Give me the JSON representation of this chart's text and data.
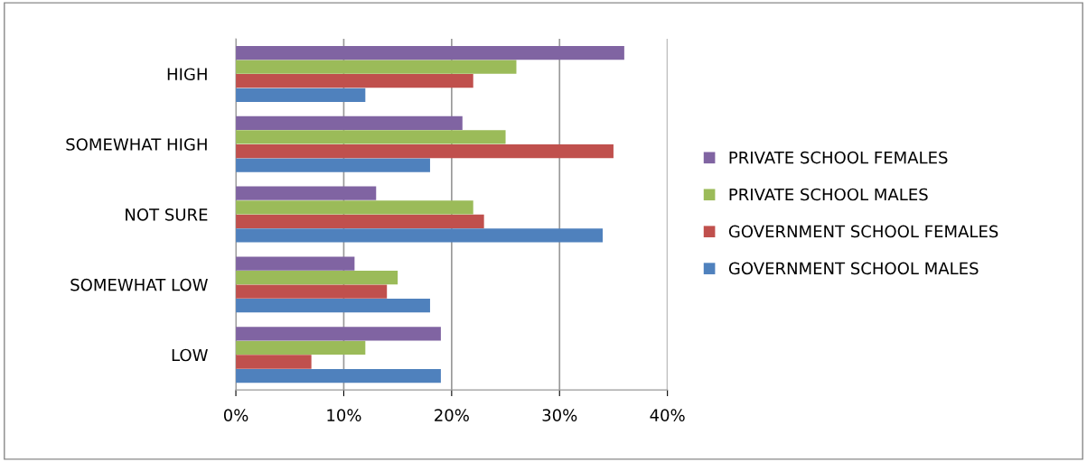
{
  "chart_data": {
    "type": "bar",
    "orientation": "horizontal",
    "categories": [
      "HIGH",
      "SOMEWHAT HIGH",
      "NOT SURE",
      "SOMEWHAT LOW",
      "LOW"
    ],
    "series": [
      {
        "name": "GOVERNMENT SCHOOL MALES",
        "color": "#4f81bd",
        "values": [
          12,
          18,
          34,
          18,
          19
        ]
      },
      {
        "name": "GOVERNMENT SCHOOL FEMALES",
        "color": "#c0504d",
        "values": [
          22,
          35,
          23,
          14,
          7
        ]
      },
      {
        "name": "PRIVATE SCHOOL MALES",
        "color": "#9bbb59",
        "values": [
          26,
          25,
          22,
          15,
          12
        ]
      },
      {
        "name": "PRIVATE SCHOOL FEMALES",
        "color": "#8064a2",
        "values": [
          36,
          21,
          13,
          11,
          19
        ]
      }
    ],
    "xlim": [
      0,
      40
    ],
    "xticks": [
      {
        "value": 0,
        "label": "0%"
      },
      {
        "value": 10,
        "label": "10%"
      },
      {
        "value": 20,
        "label": "20%"
      },
      {
        "value": 30,
        "label": "30%"
      },
      {
        "value": 40,
        "label": "40%"
      }
    ],
    "grid": "x",
    "legend": "right"
  }
}
